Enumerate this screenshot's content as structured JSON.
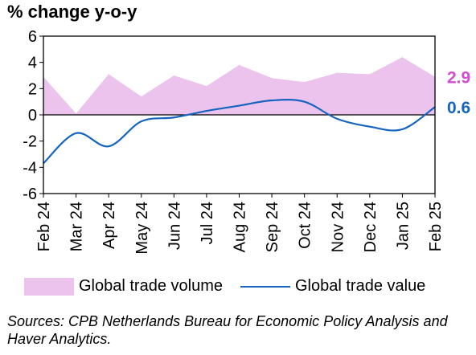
{
  "chart_data": {
    "type": "area",
    "title": "",
    "ylabel": "% change y-o-y",
    "xlabel": "",
    "ylim": [
      -6,
      6
    ],
    "yticks": [
      "6",
      "4",
      "2",
      "0",
      "-2",
      "-4",
      "-6"
    ],
    "grid": false,
    "legend_position": "bottom",
    "categories": [
      "Feb 24",
      "Mar 24",
      "Apr 24",
      "May 24",
      "Jun 24",
      "Jul 24",
      "Aug 24",
      "Sep 24",
      "Oct 24",
      "Nov 24",
      "Dec 24",
      "Jan 25",
      "Feb 25"
    ],
    "series": [
      {
        "name": "Global trade volume",
        "kind": "area",
        "color": "#ecc3ec",
        "values": [
          2.9,
          0.1,
          3.1,
          1.4,
          3.0,
          2.2,
          3.8,
          2.8,
          2.5,
          3.2,
          3.1,
          4.4,
          2.9
        ],
        "end_label": "2.9",
        "end_label_color": "#d14ed1"
      },
      {
        "name": "Global trade value",
        "kind": "line",
        "color": "#1565c0",
        "values": [
          -3.7,
          -1.4,
          -2.4,
          -0.5,
          -0.2,
          0.3,
          0.7,
          1.1,
          1.0,
          -0.3,
          -0.9,
          -1.1,
          0.6
        ],
        "end_label": "0.6",
        "end_label_color": "#1565c0"
      }
    ]
  },
  "legend": {
    "area_label": "Global trade volume",
    "line_label": "Global trade value"
  },
  "source": "Sources: CPB Netherlands Bureau for Economic Policy Analysis and Haver Analytics."
}
